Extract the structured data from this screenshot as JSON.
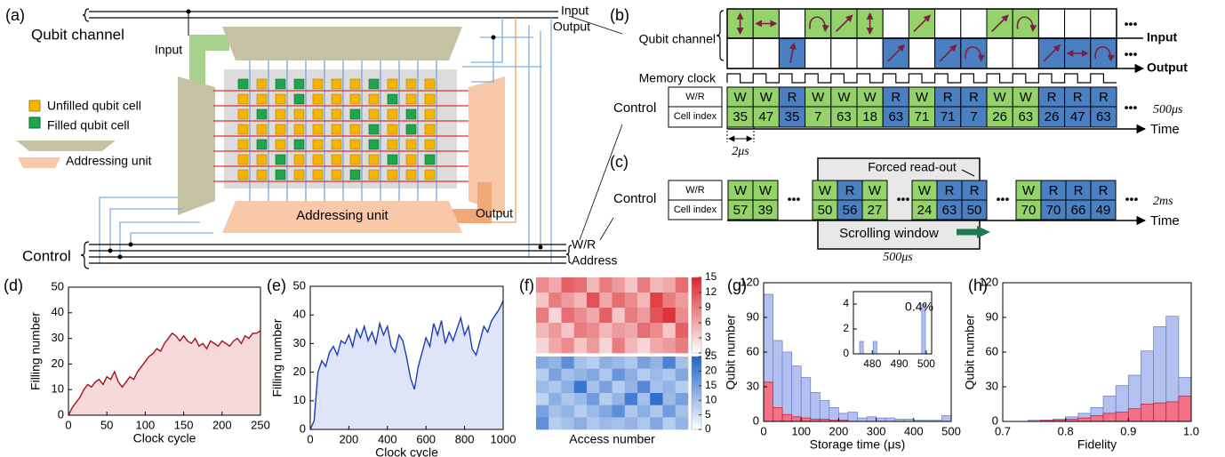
{
  "panel_a": {
    "label": "(a)",
    "qubit_channel": "Qubit channel",
    "input_line": "Input",
    "output_line": "Output",
    "input": "Input",
    "legend": [
      "Unfilled qubit cell",
      "Filled qubit cell",
      "Addressing unit"
    ],
    "addressing_unit": "Addressing unit",
    "output": "Output",
    "control": "Control",
    "wr": "W/R",
    "address": "Address"
  },
  "panel_b": {
    "label": "(b)",
    "qubit_channel": "Qubit channel",
    "input": "Input",
    "output": "Output",
    "memory_clock": "Memory clock",
    "control": "Control",
    "wr_header": "W/R",
    "index_header": "Cell index",
    "ops": [
      "W",
      "W",
      "R",
      "W",
      "W",
      "W",
      "R",
      "W",
      "R",
      "R",
      "W",
      "W",
      "R",
      "R",
      "R"
    ],
    "indices": [
      35,
      47,
      35,
      7,
      63,
      18,
      63,
      71,
      71,
      7,
      26,
      63,
      26,
      47,
      63
    ],
    "ellipsis": "•••",
    "duration": "500μs",
    "time": "Time",
    "step": "2μs"
  },
  "panel_c": {
    "label": "(c)",
    "forced_readout": "Forced read-out",
    "control": "Control",
    "wr_header": "W/R",
    "index_header": "Cell index",
    "groups": [
      {
        "ops": [
          "W",
          "W"
        ],
        "indices": [
          57,
          39
        ]
      },
      {
        "ops": [
          "W",
          "R",
          "W"
        ],
        "indices": [
          50,
          56,
          27
        ]
      },
      {
        "ops": [
          "W",
          "R",
          "R"
        ],
        "indices": [
          24,
          63,
          50
        ]
      },
      {
        "ops": [
          "W",
          "R",
          "R",
          "R"
        ],
        "indices": [
          70,
          70,
          66,
          49
        ]
      }
    ],
    "ellipsis": "•••",
    "duration": "2ms",
    "time": "Time",
    "scrolling_window": "Scrolling window",
    "window": "500μs"
  },
  "chart_data": [
    {
      "type": "line",
      "label": "(d)",
      "xlabel": "Clock cycle",
      "ylabel": "Filling number",
      "color": "#a3111c",
      "fill_color": "#f6d9d9",
      "x": [
        0,
        5,
        10,
        15,
        20,
        25,
        30,
        35,
        40,
        45,
        50,
        55,
        60,
        65,
        70,
        75,
        80,
        85,
        90,
        95,
        100,
        105,
        110,
        115,
        120,
        125,
        130,
        135,
        140,
        145,
        150,
        155,
        160,
        165,
        170,
        175,
        180,
        185,
        190,
        195,
        200,
        205,
        210,
        215,
        220,
        225,
        230,
        235,
        240,
        245,
        250
      ],
      "values": [
        0,
        3,
        5,
        7,
        10,
        12,
        11,
        13,
        14,
        12,
        15,
        14,
        17,
        13,
        11,
        13,
        15,
        14,
        17,
        19,
        21,
        23,
        24,
        26,
        25,
        28,
        30,
        32,
        31,
        29,
        31,
        29,
        28,
        30,
        27,
        28,
        26,
        29,
        28,
        27,
        29,
        28,
        27,
        29,
        30,
        28,
        31,
        30,
        32,
        32,
        33
      ],
      "xlim": [
        0,
        250
      ],
      "ylim": [
        0,
        50
      ],
      "xticks": [
        0,
        50,
        100,
        150,
        200,
        250
      ],
      "yticks": [
        0,
        10,
        20,
        30,
        40,
        50
      ]
    },
    {
      "type": "line",
      "label": "(e)",
      "xlabel": "Clock cycle",
      "ylabel": "Filling number",
      "color": "#1a3db8",
      "fill_color": "#dfe4f9",
      "x": [
        0,
        20,
        40,
        60,
        80,
        100,
        120,
        140,
        160,
        180,
        200,
        220,
        240,
        260,
        280,
        300,
        320,
        340,
        360,
        380,
        400,
        420,
        440,
        460,
        480,
        500,
        520,
        540,
        560,
        580,
        600,
        620,
        640,
        660,
        680,
        700,
        720,
        740,
        760,
        780,
        800,
        820,
        840,
        860,
        880,
        900,
        920,
        940,
        960,
        980,
        1000
      ],
      "values": [
        0,
        3,
        20,
        24,
        22,
        27,
        29,
        26,
        31,
        30,
        33,
        29,
        35,
        32,
        36,
        31,
        34,
        30,
        37,
        33,
        36,
        29,
        27,
        33,
        31,
        25,
        18,
        14,
        22,
        27,
        32,
        29,
        37,
        33,
        38,
        30,
        34,
        31,
        35,
        39,
        33,
        36,
        28,
        26,
        31,
        36,
        34,
        38,
        40,
        42,
        45
      ],
      "xlim": [
        0,
        1000
      ],
      "ylim": [
        0,
        50
      ],
      "xticks": [
        0,
        200,
        400,
        600,
        800,
        1000
      ],
      "yticks": [
        0,
        10,
        20,
        30,
        40,
        50
      ]
    },
    {
      "type": "heatmap",
      "label": "(f)",
      "color": "#d9262c",
      "zlim": [
        0,
        15
      ],
      "zticks": [
        0,
        3,
        6,
        9,
        12,
        15
      ],
      "z": [
        [
          8,
          6,
          11,
          10,
          5,
          9,
          7,
          4,
          9,
          5,
          6,
          10
        ],
        [
          4,
          9,
          7,
          5,
          12,
          6,
          10,
          8,
          5,
          13,
          9,
          7
        ],
        [
          9,
          3,
          10,
          8,
          6,
          11,
          4,
          9,
          7,
          12,
          14,
          8
        ],
        [
          5,
          7,
          4,
          9,
          8,
          5,
          7,
          6,
          10,
          8,
          4,
          11
        ],
        [
          3,
          6,
          8,
          4,
          7,
          3,
          9,
          5,
          3,
          6,
          7,
          9
        ]
      ]
    },
    {
      "type": "heatmap",
      "xlabel": "Access number",
      "color": "#1f63c9",
      "zlim": [
        0,
        25
      ],
      "zticks": [
        0,
        5,
        10,
        15,
        20,
        25
      ],
      "z": [
        [
          14,
          12,
          18,
          10,
          8,
          13,
          11,
          9,
          15,
          12,
          20,
          10
        ],
        [
          8,
          15,
          10,
          12,
          14,
          9,
          17,
          13,
          8,
          11,
          9,
          14
        ],
        [
          11,
          9,
          13,
          22,
          10,
          15,
          8,
          12,
          19,
          10,
          12,
          8
        ],
        [
          7,
          13,
          9,
          11,
          16,
          8,
          12,
          21,
          10,
          23,
          11,
          15
        ],
        [
          15,
          10,
          12,
          8,
          11,
          14,
          18,
          9,
          13,
          9,
          16,
          10
        ],
        [
          18,
          8,
          10,
          13,
          9,
          11,
          10,
          12,
          9,
          14,
          8,
          12
        ]
      ]
    },
    {
      "type": "histogram",
      "label": "(g)",
      "xlabel": "Storage time (μs)",
      "ylabel": "Qubit number",
      "bins": [
        0,
        25,
        50,
        75,
        100,
        125,
        150,
        175,
        200,
        225,
        250,
        275,
        300,
        325,
        350,
        375,
        400,
        425,
        450,
        475,
        500
      ],
      "series": [
        {
          "color": "#b3c0f0",
          "edgecolor": "#7083d2",
          "values": [
            110,
            70,
            60,
            48,
            38,
            25,
            18,
            12,
            7,
            8,
            3,
            4,
            3,
            3,
            2,
            2,
            1,
            1,
            1,
            5
          ]
        },
        {
          "color": "#f4718a",
          "edgecolor": "#c9253d",
          "values": [
            34,
            12,
            6,
            4,
            3,
            2,
            2,
            1,
            1,
            0,
            0,
            0,
            0,
            0,
            0,
            0,
            0,
            0,
            0,
            0
          ]
        }
      ],
      "xlim": [
        0,
        500
      ],
      "ylim": [
        0,
        120
      ],
      "xticks": [
        0,
        100,
        200,
        300,
        400,
        500
      ],
      "yticks": [
        0,
        30,
        60,
        90,
        120
      ],
      "inset": {
        "x": [
          476,
          481,
          499
        ],
        "values": [
          1,
          1,
          4
        ],
        "xlim": [
          473,
          502
        ],
        "ylim": [
          0,
          5
        ],
        "xticks": [
          480,
          490,
          500
        ],
        "yticks": [
          0,
          2,
          4
        ],
        "annotation": "0.4%"
      }
    },
    {
      "type": "histogram",
      "label": "(h)",
      "xlabel": "Fidelity",
      "ylabel": "Qubit number",
      "bins": [
        0.7,
        0.72,
        0.74,
        0.76,
        0.78,
        0.8,
        0.82,
        0.84,
        0.86,
        0.88,
        0.9,
        0.92,
        0.94,
        0.96,
        0.98,
        1.0
      ],
      "series": [
        {
          "color": "#b3c0f0",
          "edgecolor": "#7083d2",
          "values": [
            0,
            0,
            1,
            1,
            2,
            4,
            7,
            12,
            22,
            31,
            40,
            61,
            82,
            91,
            38
          ]
        },
        {
          "color": "#f4718a",
          "edgecolor": "#c9253d",
          "values": [
            0,
            0,
            0,
            1,
            1,
            2,
            3,
            5,
            7,
            8,
            11,
            15,
            16,
            17,
            22
          ]
        }
      ],
      "xlim": [
        0.7,
        1.0
      ],
      "ylim": [
        0,
        120
      ],
      "xticks": [
        0.7,
        0.8,
        0.9,
        {
          "value": 1,
          "label": "1.0"
        }
      ],
      "yticks": [
        0,
        30,
        60,
        90,
        120
      ]
    }
  ]
}
